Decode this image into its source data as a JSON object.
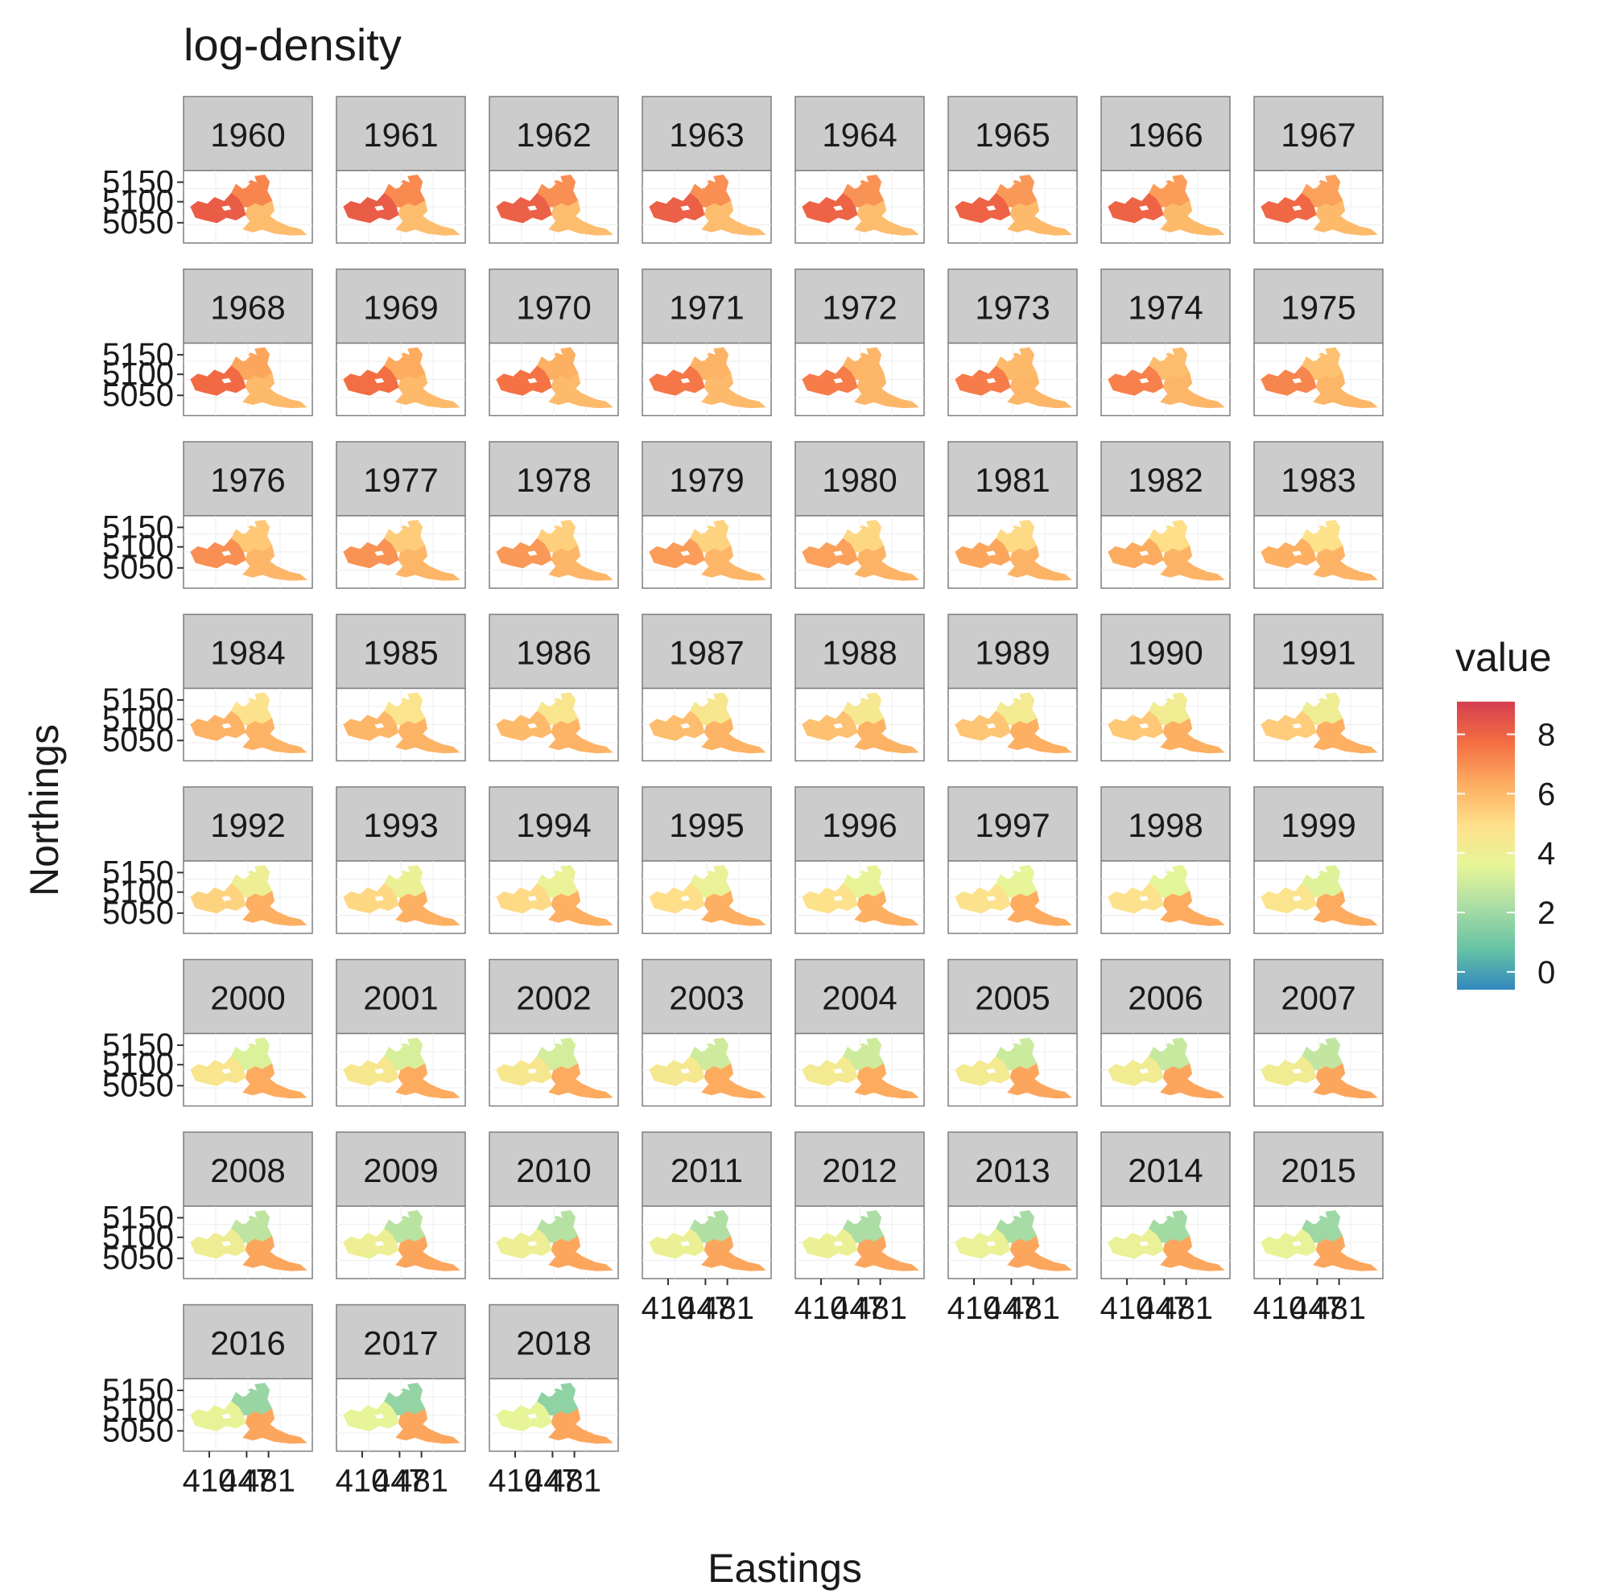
{
  "chart_data": {
    "type": "heatmap",
    "title": "log-density",
    "xlabel": "Eastings",
    "ylabel": "Northings",
    "legend": {
      "title": "value",
      "position": "right",
      "range": [
        -0.6,
        9.1
      ],
      "ticks": [
        0,
        2,
        4,
        6,
        8
      ]
    },
    "palette": [
      "#3288bd",
      "#66c2a5",
      "#abdda4",
      "#e6f598",
      "#fee08b",
      "#fdae61",
      "#f46d43",
      "#d53e4f"
    ],
    "panel_background": "#ffffff",
    "strip_fill": "#cccccc",
    "panel_border": "#7f7f7f",
    "y_ticks": [
      "5150",
      "5100",
      "5050"
    ],
    "x_ticks": [
      "410",
      "447",
      "481"
    ],
    "years": [
      "1960",
      "1961",
      "1962",
      "1963",
      "1964",
      "1965",
      "1966",
      "1967",
      "1968",
      "1969",
      "1970",
      "1971",
      "1972",
      "1973",
      "1974",
      "1975",
      "1976",
      "1977",
      "1978",
      "1979",
      "1980",
      "1981",
      "1982",
      "1983",
      "1984",
      "1985",
      "1986",
      "1987",
      "1988",
      "1989",
      "1990",
      "1991",
      "1992",
      "1993",
      "1994",
      "1995",
      "1996",
      "1997",
      "1998",
      "1999",
      "2000",
      "2001",
      "2002",
      "2003",
      "2004",
      "2005",
      "2006",
      "2007",
      "2008",
      "2009",
      "2010",
      "2011",
      "2012",
      "2013",
      "2014",
      "2015",
      "2016",
      "2017",
      "2018"
    ],
    "west_level": [
      8.2,
      8.2,
      8.1,
      8.1,
      8.0,
      8.0,
      8.0,
      7.9,
      7.8,
      7.7,
      7.6,
      7.5,
      7.4,
      7.4,
      7.3,
      7.2,
      7.0,
      6.9,
      6.8,
      6.7,
      6.6,
      6.5,
      6.4,
      6.3,
      6.2,
      6.1,
      6.0,
      5.9,
      5.8,
      5.7,
      5.6,
      5.5,
      5.3,
      5.2,
      5.1,
      5.0,
      4.9,
      4.8,
      4.8,
      4.7,
      4.6,
      4.5,
      4.5,
      4.4,
      4.3,
      4.3,
      4.2,
      4.2,
      4.1,
      4.0,
      4.0,
      3.9,
      3.9,
      3.8,
      3.8,
      3.7,
      3.7,
      3.6,
      3.6
    ],
    "north_level": [
      7.2,
      7.1,
      7.0,
      7.0,
      6.9,
      6.8,
      6.7,
      6.6,
      6.5,
      6.4,
      6.3,
      6.2,
      6.1,
      6.0,
      5.9,
      5.8,
      5.6,
      5.5,
      5.4,
      5.3,
      5.2,
      5.1,
      5.0,
      4.9,
      4.8,
      4.7,
      4.6,
      4.5,
      4.4,
      4.3,
      4.2,
      4.1,
      4.0,
      3.9,
      3.8,
      3.8,
      3.7,
      3.6,
      3.5,
      3.4,
      3.3,
      3.2,
      3.1,
      3.0,
      3.0,
      2.9,
      2.8,
      2.7,
      2.6,
      2.5,
      2.4,
      2.3,
      2.2,
      2.1,
      2.0,
      1.9,
      1.8,
      1.7,
      1.6
    ],
    "south_level": [
      5.9,
      5.9,
      5.9,
      5.9,
      5.9,
      6.0,
      6.0,
      6.0,
      6.0,
      6.0,
      6.0,
      6.0,
      6.1,
      6.1,
      6.1,
      6.1,
      6.1,
      6.1,
      6.1,
      6.1,
      6.2,
      6.2,
      6.2,
      6.2,
      6.2,
      6.2,
      6.2,
      6.2,
      6.2,
      6.3,
      6.3,
      6.3,
      6.3,
      6.3,
      6.3,
      6.3,
      6.3,
      6.4,
      6.4,
      6.4,
      6.4,
      6.4,
      6.4,
      6.4,
      6.4,
      6.5,
      6.5,
      6.5,
      6.5,
      6.5,
      6.5,
      6.5,
      6.5,
      6.5,
      6.5,
      6.5,
      6.5,
      6.5,
      6.5
    ]
  }
}
